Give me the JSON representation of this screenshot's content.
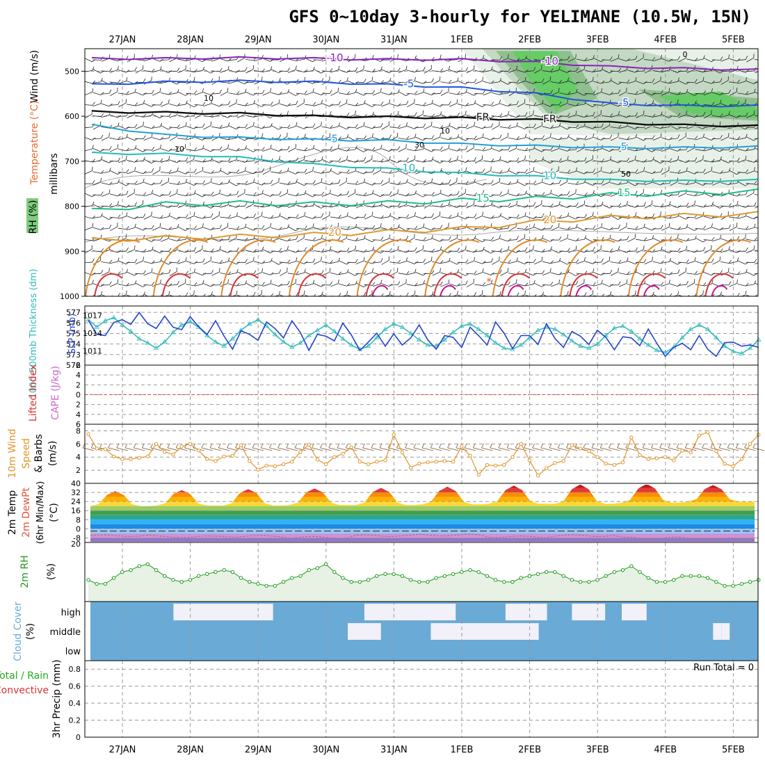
{
  "title": "GFS 0~10day 3-hourly for YELIMANE (10.5W, 15N)",
  "colors": {
    "wind_barb": "#222222",
    "thickness": "#33bbbb",
    "slp": "#2244cc",
    "wind_speed": "#e0952a",
    "rh": "#229922",
    "cloud": "#6aaad6",
    "cloud_clear": "#f2f0f8",
    "rh_shade_green": "#66cc66",
    "lifted_zero": "#dd4444"
  },
  "chart_data": [
    {
      "id": "cross_section",
      "type": "line",
      "title": "Wind (m/s) / Temperature (°C) / RH (%)",
      "ylabel": "millibars",
      "ylabel_parts": [
        "Wind (m/s)",
        "Temperature (°C)",
        "RH (%)",
        "millibars"
      ],
      "dates": [
        "27JAN",
        "28JAN",
        "29JAN",
        "30JAN",
        "31JAN",
        "1FEB",
        "2FEB",
        "3FEB",
        "4FEB",
        "5FEB"
      ],
      "yticks": [
        500,
        600,
        700,
        800,
        900,
        1000
      ],
      "ylim": [
        1000,
        450
      ],
      "temperature_contours": [
        {
          "label": "-10",
          "color": "#8822bb",
          "values_mb": [
            470,
            470,
            468,
            470,
            472,
            472,
            478,
            488,
            492,
            495
          ]
        },
        {
          "label": "-5",
          "color": "#2255dd",
          "values_mb": [
            528,
            522,
            520,
            522,
            528,
            535,
            548,
            570,
            575,
            575
          ]
        },
        {
          "label": "FR",
          "color": "#111111",
          "values_mb": [
            588,
            590,
            592,
            598,
            600,
            602,
            606,
            612,
            618,
            620
          ]
        },
        {
          "label": "5",
          "color": "#22a0d8",
          "values_mb": [
            618,
            640,
            646,
            650,
            652,
            660,
            664,
            668,
            668,
            666
          ]
        },
        {
          "label": "10",
          "color": "#22bbbb",
          "values_mb": [
            680,
            682,
            690,
            705,
            715,
            725,
            732,
            740,
            742,
            740
          ]
        },
        {
          "label": "15",
          "color": "#22bb88",
          "values_mb": [
            805,
            790,
            788,
            790,
            788,
            782,
            778,
            770,
            766,
            762
          ]
        },
        {
          "label": "20",
          "color": "#dd9933",
          "values_mb": [
            870,
            865,
            862,
            858,
            852,
            845,
            830,
            820,
            816,
            812
          ]
        }
      ],
      "rh_contour_labels": [
        "10",
        "10",
        "10",
        "30",
        "50",
        "0"
      ],
      "extra_labels": [
        "*"
      ]
    },
    {
      "id": "thickness_slp",
      "type": "line",
      "ylabel_left": "1000-500mb Thickness (dm)",
      "ylabel_right": "SLP (mb)",
      "yticks_thickness": [
        572,
        573,
        574,
        575,
        576,
        577
      ],
      "yticks_slp": [
        1011,
        1014,
        1017
      ],
      "series": [
        {
          "name": "Thickness",
          "axis": "left",
          "values": [
            576.3,
            575.6,
            576.2,
            576.5,
            575.8,
            575.2,
            574.5,
            574.1,
            573.6,
            574.2,
            575.1,
            575.8,
            576.1,
            575.6,
            574.8,
            574.2,
            573.8,
            574.5,
            575.3,
            575.9,
            576.3,
            575.7,
            574.9,
            574.2,
            573.7,
            574.1,
            574.8,
            575.3,
            575.8,
            575.2,
            574.5,
            573.9,
            573.5,
            573.8,
            574.6,
            575.4,
            575.9,
            575.6,
            575.0,
            574.4,
            573.9,
            573.8,
            574.4,
            575.1,
            575.7,
            575.9,
            575.4,
            574.8,
            574.1,
            573.6,
            573.5,
            573.9,
            574.6,
            575.3,
            575.6,
            575.4,
            574.9,
            574.3,
            573.8,
            573.6,
            574.0,
            574.8,
            575.5,
            575.7,
            575.2,
            574.5,
            573.9,
            573.4,
            573.2,
            573.7,
            574.6,
            575.4,
            575.8,
            575.4,
            574.6,
            573.8,
            573.3,
            573.1,
            573.6,
            574.4
          ]
        },
        {
          "name": "SLP",
          "axis": "right",
          "values": [
            1016.2,
            1013.8,
            1013.6,
            1015.8,
            1016.3,
            1015.5,
            1017.5,
            1015.6,
            1014.8,
            1016.9,
            1015.0,
            1014.6,
            1016.8,
            1015.1,
            1013.8,
            1016.1,
            1013.5,
            1011.3,
            1014.4,
            1013.8,
            1012.8,
            1015.9,
            1014.8,
            1013.2,
            1016.1,
            1014.1,
            1011.1,
            1013.8,
            1013.5,
            1012.7,
            1015.7,
            1013.7,
            1011.1,
            1012.5,
            1014.0,
            1011.8,
            1013.9,
            1012.0,
            1013.2,
            1015.4,
            1012.9,
            1011.3,
            1013.6,
            1013.3,
            1011.6,
            1015.0,
            1013.6,
            1012.0,
            1015.9,
            1014.0,
            1011.4,
            1013.6,
            1013.6,
            1012.1,
            1015.6,
            1013.1,
            1011.6,
            1014.3,
            1013.5,
            1012.1,
            1014.5,
            1013.3,
            1011.2,
            1013.4,
            1013.2,
            1011.9,
            1014.7,
            1012.3,
            1010.1,
            1011.6,
            1012.3,
            1011.2,
            1013.6,
            1011.3,
            1010.1,
            1012.4,
            1012.5,
            1011.8,
            1012.0,
            1011.6
          ]
        }
      ]
    },
    {
      "id": "lifted_cape",
      "type": "line",
      "ylabel_left": "Lifted Index",
      "ylabel_right": "CAPE (J/kg)",
      "yticks": [
        -6,
        -4,
        -2,
        0,
        2,
        4,
        6
      ],
      "ylim": [
        6,
        -6
      ],
      "series": [
        {
          "name": "Lifted Index zero line",
          "values": [
            0
          ]
        }
      ]
    },
    {
      "id": "wind10m",
      "type": "line",
      "ylabel": "10m Wind Speed & Barbs (m/s)",
      "ylabel_parts": [
        "10m Wind",
        "Speed",
        "& Barbs",
        "(m/s)"
      ],
      "yticks": [
        2,
        4,
        6,
        8
      ],
      "ylim": [
        0,
        9
      ],
      "series": [
        {
          "name": "Speed",
          "values": [
            7.5,
            5.3,
            5.2,
            4.1,
            3.7,
            3.7,
            3.9,
            4.1,
            6.0,
            4.8,
            4.4,
            5.6,
            6.0,
            5.0,
            3.7,
            3.4,
            4.1,
            4.2,
            5.8,
            3.4,
            2.1,
            2.7,
            2.6,
            2.9,
            3.3,
            4.8,
            5.9,
            3.6,
            2.9,
            4.0,
            4.5,
            5.5,
            3.3,
            2.9,
            3.3,
            3.5,
            7.4,
            4.7,
            2.4,
            3.0,
            3.2,
            3.3,
            3.4,
            3.3,
            5.6,
            4.2,
            1.3,
            2.8,
            2.7,
            2.8,
            4.0,
            6.0,
            3.5,
            1.2,
            2.3,
            3.1,
            3.4,
            5.8,
            5.3,
            4.9,
            4.0,
            3.0,
            2.8,
            3.2,
            7.0,
            4.3,
            3.7,
            3.8,
            4.0,
            3.5,
            5.0,
            4.7,
            7.3,
            7.8,
            4.9,
            3.0,
            2.6,
            3.7,
            6.0,
            7.4
          ]
        }
      ]
    },
    {
      "id": "temp2m",
      "type": "area",
      "ylabel": "2m Temp 2m DewPt (6hr Min/Max) (°C)",
      "ylabel_parts": [
        "2m Temp",
        "2m DewPt",
        "(6hr Min/Max)",
        "(°C)"
      ],
      "yticks": [
        -8,
        0,
        8,
        16,
        24,
        32,
        40
      ],
      "ylim": [
        -12,
        40
      ],
      "temp_max": [
        33,
        34,
        35,
        35.5,
        36,
        37,
        38,
        39,
        39.5,
        38.5
      ],
      "temp_min": [
        20,
        20.5,
        20.5,
        21,
        21,
        21.5,
        22,
        22,
        23,
        24
      ],
      "dewpoint": [
        -3,
        -4,
        -3.5,
        -4.5,
        -3,
        -2.5,
        -4,
        -3,
        -5,
        -6
      ]
    },
    {
      "id": "rh2m",
      "type": "area",
      "ylabel": "2m RH (%)",
      "ytick_label": "20",
      "ylim": [
        0,
        30
      ],
      "values": [
        11,
        9,
        9,
        12,
        15,
        16,
        18,
        19,
        16,
        13,
        11,
        10,
        11,
        13,
        14,
        15,
        16,
        15,
        12,
        10,
        9,
        8,
        8,
        10,
        12,
        13,
        16,
        17,
        19,
        15,
        12,
        10,
        10,
        11,
        13,
        14,
        14,
        13,
        11,
        10,
        10,
        12,
        13,
        14,
        15,
        16,
        15,
        13,
        11,
        10,
        10,
        12,
        13,
        14,
        15,
        15,
        13,
        11,
        10,
        10,
        11,
        13,
        15,
        16,
        18,
        15,
        12,
        10,
        10,
        11,
        13,
        13,
        13,
        12,
        10,
        8,
        8,
        9,
        10,
        11
      ]
    },
    {
      "id": "cloud_cover",
      "type": "heatmap",
      "ylabel": "Cloud Cover (%)",
      "ylabel_parts": [
        "Cloud Cover",
        "(%)"
      ],
      "levels": [
        "high",
        "middle",
        "low"
      ],
      "high_clear_steps": [
        [
          10,
          22
        ],
        [
          33,
          44
        ],
        [
          50,
          55
        ],
        [
          58,
          62
        ],
        [
          64,
          67
        ]
      ],
      "middle_clear_steps": [
        [
          31,
          35
        ],
        [
          41,
          54
        ],
        [
          75,
          76
        ],
        [
          76,
          77
        ]
      ]
    },
    {
      "id": "precip",
      "type": "bar",
      "ylabel": "3hr Precip (mm)",
      "legend": [
        "Total / Rain",
        "Convective"
      ],
      "yticks": [
        0,
        0.2,
        0.4,
        0.6,
        0.8
      ],
      "ylim": [
        0,
        0.9
      ],
      "run_total": "Run Total = 0",
      "values": [
        0
      ]
    }
  ]
}
